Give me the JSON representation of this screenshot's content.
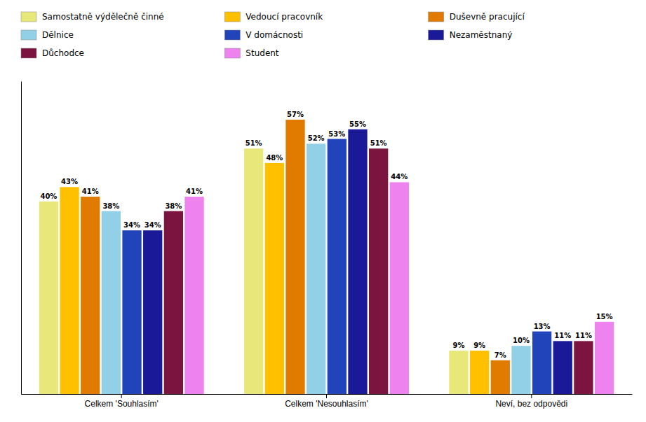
{
  "chart_data": {
    "type": "bar",
    "categories": [
      "Celkem 'Souhlasím'",
      "Celkem 'Nesouhlasím'",
      "Neví, bez odpovědi"
    ],
    "series": [
      {
        "name": "Samostatně výdělečně činné",
        "color": "#e8e87a",
        "values": [
          40,
          51,
          9
        ],
        "value_labels": [
          "40%",
          "51%",
          "9%"
        ]
      },
      {
        "name": "Vedoucí pracovník",
        "color": "#ffc000",
        "values": [
          43,
          48,
          9
        ],
        "value_labels": [
          "43%",
          "48%",
          "9%"
        ]
      },
      {
        "name": "Duševně pracující",
        "color": "#e07b00",
        "values": [
          41,
          57,
          7
        ],
        "value_labels": [
          "41%",
          "57%",
          "7%"
        ]
      },
      {
        "name": "Dělnice",
        "color": "#92d0e8",
        "values": [
          38,
          52,
          10
        ],
        "value_labels": [
          "38%",
          "52%",
          "10%"
        ]
      },
      {
        "name": "V domácnosti",
        "color": "#2244bb",
        "values": [
          34,
          53,
          13
        ],
        "value_labels": [
          "34%",
          "53%",
          "13%"
        ]
      },
      {
        "name": "Nezaměstnaný",
        "color": "#1a1a99",
        "values": [
          34,
          55,
          11
        ],
        "value_labels": [
          "34%",
          "55%",
          "11%"
        ]
      },
      {
        "name": "Důchodce",
        "color": "#7b1540",
        "values": [
          38,
          51,
          11
        ],
        "value_labels": [
          "38%",
          "51%",
          "11%"
        ]
      },
      {
        "name": "Student",
        "color": "#ee82ee",
        "values": [
          41,
          44,
          15
        ],
        "value_labels": [
          "41%",
          "44%",
          "15%"
        ]
      }
    ],
    "ylim": [
      0,
      65
    ],
    "grid": false,
    "legend": "top",
    "data_labels": true,
    "tick_labels": "x"
  }
}
